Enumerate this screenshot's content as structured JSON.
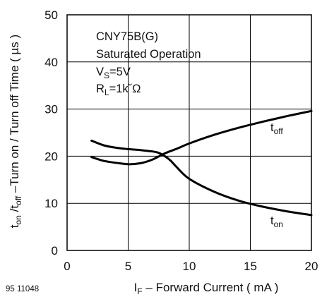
{
  "chart_data": {
    "type": "line",
    "title": "",
    "xlabel": {
      "main": "I",
      "sub": "F",
      "rest": " – Forward Current ( mA )"
    },
    "ylabel": {
      "t1": "t",
      "s1": "on",
      "mid": " /t",
      "s2": "off",
      "rest": "  –Turn on / Turn off Time ( µs )"
    },
    "xlim": [
      0,
      20
    ],
    "ylim": [
      0,
      50
    ],
    "xticks": [
      0,
      5,
      10,
      15,
      20
    ],
    "yticks": [
      0,
      10,
      20,
      30,
      40,
      50
    ],
    "grid": true,
    "annotation": {
      "line1": "CNY75B(G)",
      "line2": "Saturated Operation",
      "vs_main": "V",
      "vs_sub": "S",
      "vs_rest": "=5V",
      "rl_main": "R",
      "rl_sub": "L",
      "rl_rest": "=1kˇΩ"
    },
    "figure_id": "95 11048",
    "series": [
      {
        "label_main": "t",
        "label_sub": "off",
        "x": [
          2,
          3,
          4,
          5,
          6,
          7,
          8,
          9,
          10,
          12,
          14,
          16,
          18,
          20
        ],
        "y": [
          19.8,
          19.0,
          18.6,
          18.3,
          18.5,
          19.3,
          20.6,
          21.6,
          22.7,
          24.5,
          26.0,
          27.3,
          28.5,
          29.6
        ]
      },
      {
        "label_main": "t",
        "label_sub": "on",
        "x": [
          2,
          3,
          4,
          5,
          6,
          7,
          7.5,
          8,
          8.5,
          9,
          10,
          12,
          14,
          16,
          18,
          20
        ],
        "y": [
          23.3,
          22.3,
          21.8,
          21.5,
          21.3,
          21.0,
          20.7,
          20.0,
          19.0,
          17.6,
          15.2,
          12.5,
          10.6,
          9.3,
          8.3,
          7.5
        ]
      }
    ]
  }
}
